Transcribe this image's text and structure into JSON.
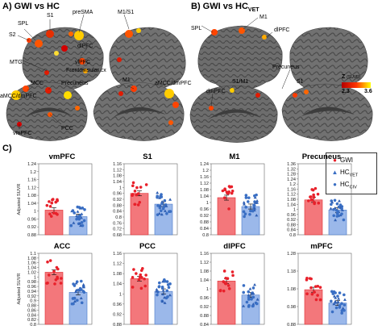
{
  "panels": {
    "a": "A) GWI vs HC",
    "b_main": "B) GWI vs HC",
    "b_sub": "VET",
    "c": "C)"
  },
  "brain_labels_a": [
    "SPL",
    "S1",
    "preSMA",
    "M1/S1",
    "S2",
    "dlPFC",
    "MTG",
    "vlPFC",
    "Frontoinsular cx",
    "MCC",
    "Precuneus",
    "M1",
    "aMCC/dmPFC",
    "aMCC/dmPFC",
    "PCC",
    "vmPFC"
  ],
  "brain_labels_b": [
    "SPL",
    "M1",
    "dlPFC",
    "Precuneus",
    "S1/M1",
    "S1",
    "dmPFC"
  ],
  "colorbar": {
    "title": "Z",
    "unit": "(SUVR)",
    "min": "2.3",
    "max": "3.6"
  },
  "legend": {
    "items": [
      {
        "symbol": "●",
        "label": "GWI",
        "sub": "",
        "color": "#e8202a"
      },
      {
        "symbol": "▲",
        "label": "HC",
        "sub": "VET",
        "color": "#3a6fc4"
      },
      {
        "symbol": "●",
        "label": "HC",
        "sub": "CIV",
        "color": "#3a6fc4"
      }
    ]
  },
  "ylabel": "Adjusted SUVR",
  "chart_data": [
    {
      "type": "bar",
      "title": "vmPFC",
      "categories": [
        "GWI",
        "HC"
      ],
      "values": [
        1.005,
        0.972
      ],
      "ylim": [
        0.88,
        1.24
      ],
      "ticks": [
        "1.24",
        "1.2",
        "1.16",
        "1.12",
        "1.08",
        "1.04",
        "1",
        "0.96",
        "0.92",
        "0.88"
      ]
    },
    {
      "type": "bar",
      "title": "S1",
      "categories": [
        "GWI",
        "HC"
      ],
      "values": [
        0.96,
        0.887
      ],
      "ylim": [
        0.68,
        1.16
      ],
      "ticks": [
        "1.16",
        "1.12",
        "1.08",
        "1.04",
        "1",
        "0.96",
        "0.92",
        "0.88",
        "0.84",
        "0.8",
        "0.76",
        "0.72",
        "0.68"
      ]
    },
    {
      "type": "bar",
      "title": "M1",
      "categories": [
        "GWI",
        "HC"
      ],
      "values": [
        1.03,
        0.975
      ],
      "ylim": [
        0.8,
        1.24
      ],
      "ticks": [
        "1.24",
        "1.2",
        "1.16",
        "1.12",
        "1.08",
        "1.04",
        "1",
        "0.96",
        "0.92",
        "0.88",
        "0.84",
        "0.8"
      ]
    },
    {
      "type": "bar",
      "title": "Precuneus",
      "categories": [
        "GWI",
        "HC"
      ],
      "values": [
        1.075,
        0.995
      ],
      "ylim": [
        0.8,
        1.36
      ],
      "ticks": [
        "1.36",
        "1.32",
        "1.28",
        "1.24",
        "1.2",
        "1.16",
        "1.12",
        "1.08",
        "1.04",
        "1",
        "0.96",
        "0.92",
        "0.88",
        "0.84",
        "0.8"
      ]
    },
    {
      "type": "bar",
      "title": "ACC",
      "categories": [
        "GWI",
        "HC"
      ],
      "values": [
        1.02,
        0.935
      ],
      "ylim": [
        0.8,
        1.1
      ],
      "ticks": [
        "1.1",
        "1.08",
        "1.06",
        "1.04",
        "1.02",
        "1",
        "0.98",
        "0.96",
        "0.94",
        "0.92",
        "0.9",
        "0.88",
        "0.86",
        "0.84",
        "0.82",
        "0.8"
      ]
    },
    {
      "type": "bar",
      "title": "PCC",
      "categories": [
        "GWI",
        "HC"
      ],
      "values": [
        1.06,
        1.01
      ],
      "ylim": [
        0.88,
        1.16
      ],
      "ticks": [
        "1.16",
        "1.12",
        "1.08",
        "1.04",
        "1",
        "0.96",
        "0.92",
        "0.88"
      ]
    },
    {
      "type": "bar",
      "title": "dlPFC",
      "categories": [
        "GWI",
        "HC"
      ],
      "values": [
        1.035,
        0.972
      ],
      "ylim": [
        0.84,
        1.16
      ],
      "ticks": [
        "1.16",
        "1.12",
        "1.08",
        "1.04",
        "1",
        "0.96",
        "0.92",
        "0.88",
        "0.84"
      ]
    },
    {
      "type": "bar",
      "title": "mPFC",
      "categories": [
        "GWI",
        "HC"
      ],
      "values": [
        1.075,
        1.0
      ],
      "ylim": [
        0.88,
        1.28
      ],
      "ticks": [
        "1.28",
        "1.18",
        "1.08",
        "0.98",
        "0.88"
      ]
    }
  ]
}
